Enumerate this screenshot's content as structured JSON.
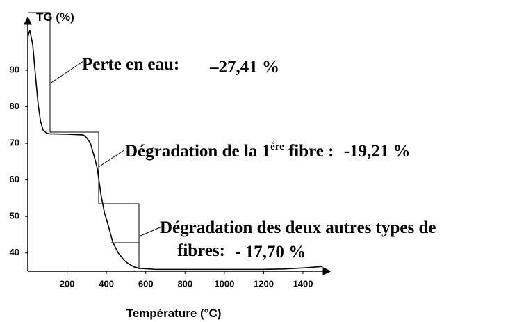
{
  "chart_data": {
    "type": "line",
    "ylabel": "TG (%)",
    "xlabel": "Température (°C)",
    "x": [
      0,
      10,
      25,
      40,
      53,
      65,
      78,
      95,
      110,
      200,
      283,
      300,
      319,
      340,
      354,
      372,
      390,
      407,
      432,
      460,
      490,
      513,
      540,
      566,
      650,
      900,
      1200,
      1300,
      1400,
      1500
    ],
    "series": [
      {
        "color": "#000000",
        "values": [
          99,
          101,
          97,
          88,
          80.5,
          76,
          73.6,
          72.8,
          72.6,
          72.5,
          72.3,
          71.5,
          70,
          66,
          63,
          56,
          51,
          48,
          43,
          40,
          38,
          37,
          36.2,
          35.8,
          35.5,
          35.5,
          35.5,
          35.6,
          35.9,
          36.3
        ]
      }
    ],
    "xlim": [
      0,
      1520
    ],
    "ylim": [
      35,
      102
    ],
    "xticks": [
      200,
      400,
      600,
      800,
      1000,
      1200,
      1400
    ],
    "yticks": [
      40,
      50,
      60,
      70,
      80,
      90
    ],
    "annotations": [
      "Perte en eau:",
      "–27,41 %",
      "Dégradation de la 1",
      "ère",
      " fibre : ",
      "-19,21 %",
      "Dégradation des deux autres types de",
      "fibres:",
      "- 17,70 %"
    ]
  }
}
